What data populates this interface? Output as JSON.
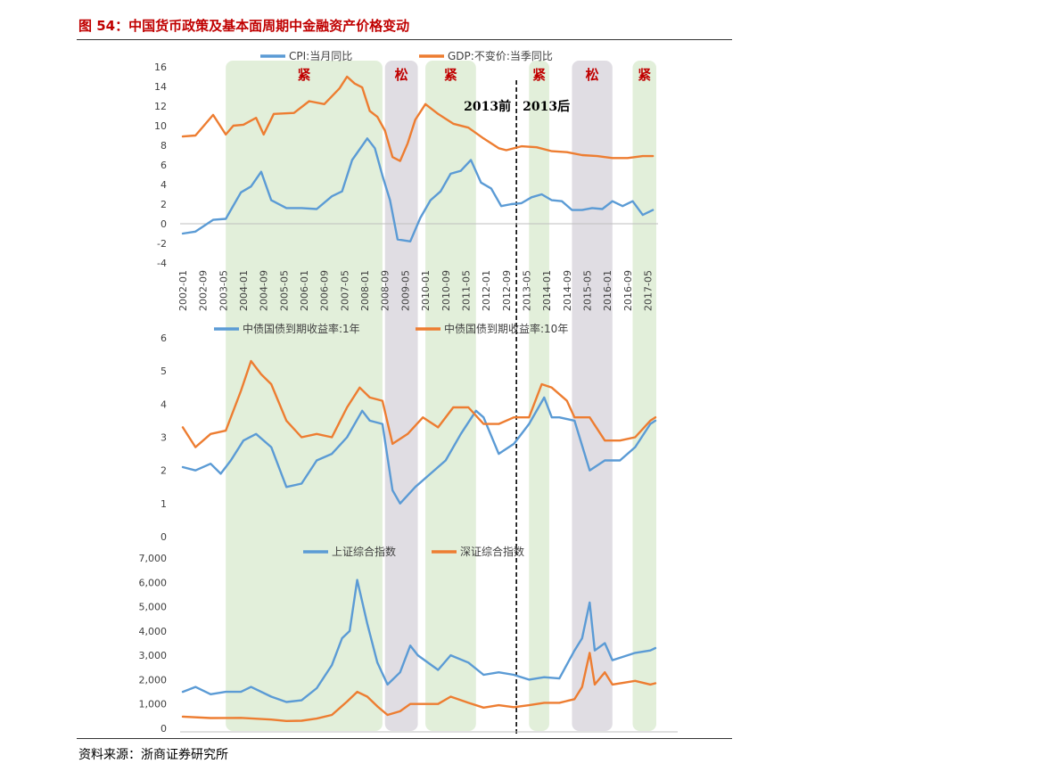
{
  "figure_title": "图 54：中国货币政策及基本面周期中金融资产价格变动",
  "source": "资料来源：浙商证券研究所",
  "chart_data": [
    {
      "type": "line",
      "panel": "macro",
      "series": [
        {
          "name": "CPI:当月同比",
          "color": "#5b9bd5",
          "x": [
            "2002-01",
            "2002-06",
            "2003-01",
            "2003-06",
            "2003-12",
            "2004-04",
            "2004-08",
            "2004-12",
            "2005-06",
            "2005-12",
            "2006-06",
            "2006-12",
            "2007-04",
            "2007-08",
            "2008-02",
            "2008-05",
            "2008-08",
            "2008-11",
            "2009-02",
            "2009-07",
            "2009-11",
            "2010-03",
            "2010-07",
            "2010-11",
            "2011-03",
            "2011-07",
            "2011-11",
            "2012-03",
            "2012-07",
            "2012-11",
            "2013-03",
            "2013-07",
            "2013-11",
            "2014-03",
            "2014-07",
            "2014-11",
            "2015-03",
            "2015-07",
            "2015-11",
            "2016-03",
            "2016-07",
            "2016-11",
            "2017-03",
            "2017-07"
          ],
          "values": [
            -1.0,
            -0.8,
            0.4,
            0.5,
            3.2,
            3.8,
            5.3,
            2.4,
            1.6,
            1.6,
            1.5,
            2.8,
            3.3,
            6.5,
            8.7,
            7.7,
            4.9,
            2.4,
            -1.6,
            -1.8,
            0.6,
            2.4,
            3.3,
            5.1,
            5.4,
            6.5,
            4.2,
            3.6,
            1.8,
            2.0,
            2.1,
            2.7,
            3.0,
            2.4,
            2.3,
            1.4,
            1.4,
            1.6,
            1.5,
            2.3,
            1.8,
            2.3,
            0.9,
            1.4
          ]
        },
        {
          "name": "GDP:不变价:当季同比",
          "color": "#ed7d31",
          "x": [
            "2002-01",
            "2002-06",
            "2002-09",
            "2003-01",
            "2003-06",
            "2003-09",
            "2004-01",
            "2004-06",
            "2004-09",
            "2005-01",
            "2005-09",
            "2006-03",
            "2006-09",
            "2007-03",
            "2007-06",
            "2007-09",
            "2007-12",
            "2008-03",
            "2008-06",
            "2008-09",
            "2008-12",
            "2009-03",
            "2009-06",
            "2009-09",
            "2010-01",
            "2010-06",
            "2010-12",
            "2011-06",
            "2011-12",
            "2012-06",
            "2012-09",
            "2013-03",
            "2013-09",
            "2014-03",
            "2014-09",
            "2015-03",
            "2015-09",
            "2016-03",
            "2016-09",
            "2017-03",
            "2017-07"
          ],
          "values": [
            8.9,
            9.0,
            9.9,
            11.1,
            9.1,
            10.0,
            10.1,
            10.8,
            9.1,
            11.2,
            11.3,
            12.5,
            12.2,
            13.8,
            15.0,
            14.3,
            13.9,
            11.5,
            10.9,
            9.5,
            6.8,
            6.4,
            8.2,
            10.6,
            12.2,
            11.2,
            10.2,
            9.8,
            8.7,
            7.7,
            7.5,
            7.9,
            7.8,
            7.4,
            7.3,
            7.0,
            6.9,
            6.7,
            6.7,
            6.9,
            6.9
          ]
        }
      ],
      "ylim": [
        -4,
        16
      ],
      "yticks": [
        "16",
        "14",
        "12",
        "10",
        "8",
        "6",
        "4",
        "2",
        "0",
        "-2",
        "-4"
      ],
      "xticks": [
        "2002-01",
        "2002-09",
        "2003-05",
        "2004-01",
        "2004-09",
        "2005-05",
        "2006-01",
        "2006-09",
        "2007-05",
        "2008-01",
        "2008-09",
        "2009-05",
        "2010-01",
        "2010-09",
        "2011-05",
        "2012-01",
        "2012-09",
        "2013-05",
        "2014-01",
        "2014-09",
        "2015-05",
        "2016-01",
        "2016-09",
        "2017-05"
      ],
      "annotations": [
        "紧",
        "松",
        "紧",
        "紧",
        "松",
        "紧",
        "2013前",
        "2013后"
      ]
    },
    {
      "type": "line",
      "panel": "bonds",
      "series": [
        {
          "name": "中债国债到期收益率:1年",
          "color": "#5b9bd5",
          "x": [
            "2002-01",
            "2002-06",
            "2002-12",
            "2003-04",
            "2003-08",
            "2004-01",
            "2004-06",
            "2004-12",
            "2005-06",
            "2005-12",
            "2006-06",
            "2006-12",
            "2007-06",
            "2007-12",
            "2008-03",
            "2008-08",
            "2008-12",
            "2009-03",
            "2009-09",
            "2010-03",
            "2010-09",
            "2011-03",
            "2011-09",
            "2011-12",
            "2012-06",
            "2012-12",
            "2013-06",
            "2013-12",
            "2014-03",
            "2014-06",
            "2014-12",
            "2015-06",
            "2015-12",
            "2016-06",
            "2016-12",
            "2017-06",
            "2017-08"
          ],
          "values": [
            2.1,
            2.0,
            2.2,
            1.9,
            2.3,
            2.9,
            3.1,
            2.7,
            1.5,
            1.6,
            2.3,
            2.5,
            3.0,
            3.8,
            3.5,
            3.4,
            1.4,
            1.0,
            1.5,
            1.9,
            2.3,
            3.1,
            3.8,
            3.6,
            2.5,
            2.8,
            3.4,
            4.2,
            3.6,
            3.6,
            3.5,
            2.0,
            2.3,
            2.3,
            2.7,
            3.4,
            3.5
          ]
        },
        {
          "name": "中债国债到期收益率:10年",
          "color": "#ed7d31",
          "x": [
            "2002-01",
            "2002-06",
            "2002-12",
            "2003-06",
            "2003-12",
            "2004-04",
            "2004-08",
            "2004-12",
            "2005-06",
            "2005-12",
            "2006-06",
            "2006-12",
            "2007-06",
            "2007-11",
            "2008-03",
            "2008-08",
            "2008-12",
            "2009-06",
            "2009-12",
            "2010-06",
            "2010-12",
            "2011-06",
            "2011-12",
            "2012-06",
            "2012-12",
            "2013-06",
            "2013-11",
            "2014-03",
            "2014-09",
            "2014-12",
            "2015-06",
            "2015-12",
            "2016-06",
            "2016-12",
            "2017-06",
            "2017-08"
          ],
          "values": [
            3.3,
            2.7,
            3.1,
            3.2,
            4.4,
            5.3,
            4.9,
            4.6,
            3.5,
            3.0,
            3.1,
            3.0,
            3.9,
            4.5,
            4.2,
            4.1,
            2.8,
            3.1,
            3.6,
            3.3,
            3.9,
            3.9,
            3.4,
            3.4,
            3.6,
            3.6,
            4.6,
            4.5,
            4.1,
            3.6,
            3.6,
            2.9,
            2.9,
            3.0,
            3.5,
            3.6
          ]
        }
      ],
      "ylim": [
        0,
        6
      ],
      "yticks": [
        "6",
        "5",
        "4",
        "3",
        "2",
        "1",
        "0"
      ]
    },
    {
      "type": "line",
      "panel": "equity",
      "series": [
        {
          "name": "上证综合指数",
          "color": "#5b9bd5",
          "x": [
            "2002-01",
            "2002-06",
            "2002-12",
            "2003-06",
            "2003-12",
            "2004-04",
            "2004-12",
            "2005-06",
            "2005-12",
            "2006-06",
            "2006-12",
            "2007-04",
            "2007-07",
            "2007-10",
            "2008-02",
            "2008-06",
            "2008-10",
            "2009-03",
            "2009-07",
            "2009-10",
            "2010-06",
            "2010-11",
            "2011-06",
            "2011-12",
            "2012-06",
            "2012-12",
            "2013-06",
            "2013-12",
            "2014-06",
            "2014-12",
            "2015-03",
            "2015-06",
            "2015-08",
            "2015-12",
            "2016-03",
            "2016-12",
            "2017-06",
            "2017-08"
          ],
          "values": [
            1500,
            1700,
            1400,
            1500,
            1500,
            1700,
            1300,
            1080,
            1150,
            1650,
            2600,
            3700,
            4000,
            6100,
            4300,
            2700,
            1800,
            2300,
            3400,
            3000,
            2400,
            3000,
            2700,
            2200,
            2300,
            2200,
            2000,
            2100,
            2050,
            3200,
            3700,
            5170,
            3200,
            3500,
            2800,
            3100,
            3200,
            3300
          ]
        },
        {
          "name": "深证综合指数",
          "color": "#ed7d31",
          "x": [
            "2002-01",
            "2002-12",
            "2003-12",
            "2004-12",
            "2005-06",
            "2005-12",
            "2006-06",
            "2006-12",
            "2007-06",
            "2007-10",
            "2008-02",
            "2008-06",
            "2008-10",
            "2009-03",
            "2009-07",
            "2010-06",
            "2010-11",
            "2011-06",
            "2011-12",
            "2012-06",
            "2012-12",
            "2013-06",
            "2013-12",
            "2014-06",
            "2014-12",
            "2015-03",
            "2015-06",
            "2015-08",
            "2015-12",
            "2016-03",
            "2016-12",
            "2017-06",
            "2017-08"
          ],
          "values": [
            480,
            420,
            430,
            360,
            300,
            310,
            400,
            550,
            1100,
            1500,
            1300,
            900,
            550,
            700,
            1000,
            1000,
            1300,
            1050,
            850,
            950,
            870,
            950,
            1050,
            1050,
            1200,
            1700,
            3100,
            1800,
            2300,
            1800,
            1950,
            1800,
            1850
          ]
        }
      ],
      "ylim": [
        0,
        7000
      ],
      "yticks": [
        "7,000",
        "6,000",
        "5,000",
        "4,000",
        "3,000",
        "2,000",
        "1,000",
        "0"
      ]
    }
  ],
  "regimes": [
    {
      "label": "紧",
      "from": "2003-06",
      "to": "2008-08",
      "kind": "tight",
      "color": "#e2efda"
    },
    {
      "label": "松",
      "from": "2008-09",
      "to": "2009-10",
      "kind": "loose",
      "color": "#e0dde3"
    },
    {
      "label": "紧",
      "from": "2010-01",
      "to": "2011-09",
      "kind": "tight",
      "color": "#e2efda"
    },
    {
      "label": "紧",
      "from": "2013-06",
      "to": "2014-02",
      "kind": "tight",
      "color": "#e2efda"
    },
    {
      "label": "松",
      "from": "2014-11",
      "to": "2016-03",
      "kind": "loose",
      "color": "#e0dde3"
    },
    {
      "label": "紧",
      "from": "2016-11",
      "to": "2017-12",
      "kind": "tight",
      "color": "#e2efda"
    }
  ],
  "divider": {
    "at": "2013-01",
    "left_label": "2013前",
    "right_label": "2013后"
  }
}
